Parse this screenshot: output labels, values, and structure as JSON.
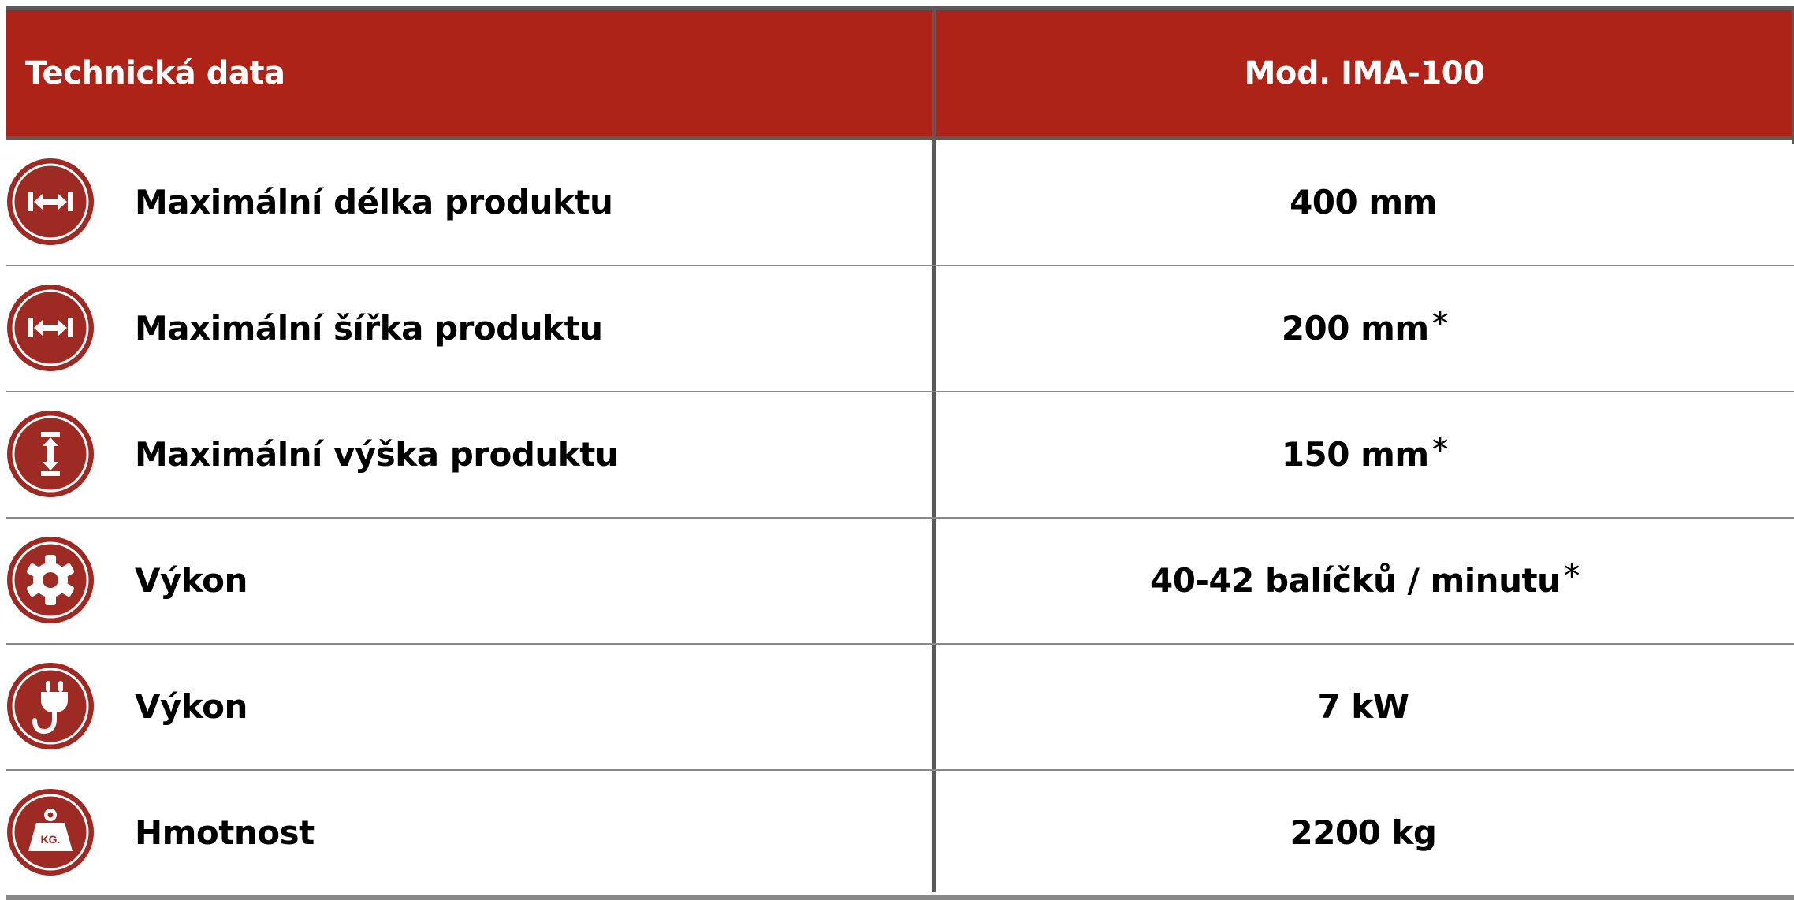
{
  "colors": {
    "header_bg": "#ae2318",
    "icon_bg": "#9e2a24",
    "border": "#5a5a5a"
  },
  "header": {
    "left": "Technická data",
    "right": "Mod. IMA-100"
  },
  "rows": [
    {
      "icon": "horizontal-arrows-icon",
      "label": "Maximální délka produktu",
      "value": "400 mm",
      "asterisk": ""
    },
    {
      "icon": "horizontal-arrows-icon",
      "label": "Maximální šířka produktu",
      "value": "200 mm",
      "asterisk": "*"
    },
    {
      "icon": "vertical-arrows-icon",
      "label": "Maximální výška produktu",
      "value": "150 mm",
      "asterisk": "*"
    },
    {
      "icon": "gear-icon",
      "label": "Výkon",
      "value": "40-42 balíčků / minutu",
      "asterisk": "*"
    },
    {
      "icon": "plug-icon",
      "label": "Výkon",
      "value": "7 kW",
      "asterisk": ""
    },
    {
      "icon": "weight-icon",
      "label": "Hmotnost",
      "value": "2200 kg",
      "asterisk": "",
      "icon_text": "KG."
    }
  ]
}
